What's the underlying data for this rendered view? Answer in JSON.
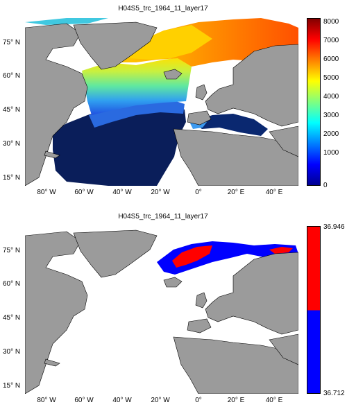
{
  "maps": [
    {
      "title": "H04S5_trc_1964_11_layer17",
      "lat_ticks": [
        "75° N",
        "60° N",
        "45° N",
        "30° N",
        "15° N"
      ],
      "lon_ticks": [
        "80° W",
        "60° W",
        "40° W",
        "20° W",
        "0°",
        "20° E",
        "40° E"
      ],
      "colorbar": {
        "scale": "jet",
        "min": 0,
        "max": 8000,
        "ticks": [
          "8000",
          "7000",
          "6000",
          "5000",
          "4000",
          "3000",
          "2000",
          "1000",
          "0"
        ]
      },
      "colors": {
        "land": "#9b9b9b",
        "ocean_nodata": "#ffffff",
        "deep": "#0a1e5a"
      }
    },
    {
      "title": "H04S5_trc_1964_11_layer17",
      "lat_ticks": [
        "75° N",
        "60° N",
        "45° N",
        "30° N",
        "15° N"
      ],
      "lon_ticks": [
        "80° W",
        "60° W",
        "40° W",
        "20° W",
        "0°",
        "20° E",
        "40° E"
      ],
      "colorbar": {
        "scale": "two-class",
        "min": 36.712,
        "max": 36.946,
        "ticks": [
          "36.946",
          "36.712"
        ]
      },
      "colors": {
        "land": "#9b9b9b",
        "ocean_nodata": "#ffffff",
        "high": "#ff0000",
        "low": "#0000ff"
      }
    }
  ]
}
